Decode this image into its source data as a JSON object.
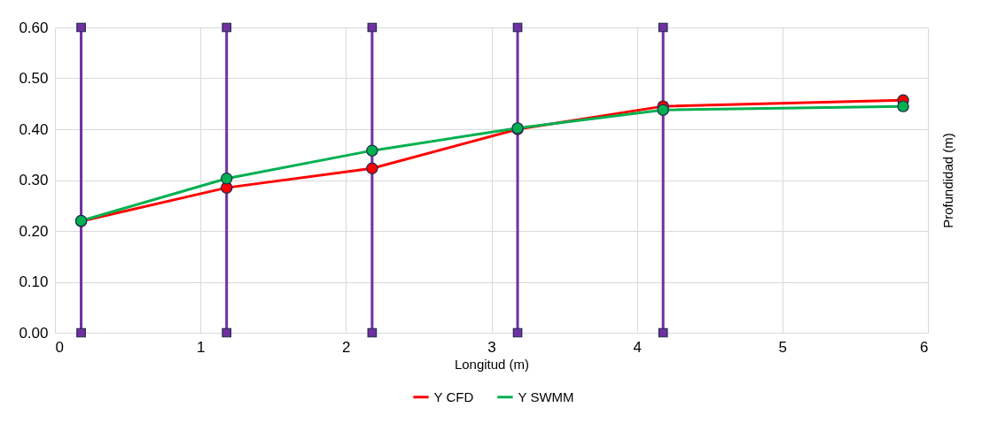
{
  "chart_data": {
    "type": "line",
    "xlabel": "Longitud (m)",
    "ylabel": "Profundidad (m)",
    "xlim": [
      0,
      6
    ],
    "xticks": [
      0,
      1,
      2,
      3,
      4,
      5,
      6
    ],
    "ylim": [
      0,
      0.6
    ],
    "yticks": [
      {
        "value": 0,
        "label": "0.00"
      },
      {
        "value": 0.1,
        "label": "0.10"
      },
      {
        "value": 0.2,
        "label": "0.20"
      },
      {
        "value": 0.3,
        "label": "0.30"
      },
      {
        "value": 0.4,
        "label": "0.40"
      },
      {
        "value": 0.5,
        "label": "0.50"
      },
      {
        "value": 0.6,
        "label": "0.60"
      }
    ],
    "grid": true,
    "legend": "bottom",
    "series": [
      {
        "color": "#7030a0",
        "marker": "square",
        "x": [
          0.18,
          0.18,
          null,
          1.18,
          1.18,
          null,
          2.18,
          2.18,
          null,
          3.18,
          3.18,
          null,
          4.18,
          4.18
        ],
        "values": [
          0,
          0.6,
          null,
          0,
          0.6,
          null,
          0,
          0.6,
          null,
          0,
          0.6,
          null,
          0,
          0.6
        ]
      },
      {
        "name": "Y CFD",
        "color": "#ff0000",
        "marker": "circle",
        "x": [
          0.18,
          1.18,
          2.18,
          3.18,
          4.18,
          5.83
        ],
        "values": [
          0.219,
          0.285,
          0.323,
          0.4,
          0.445,
          0.457
        ]
      },
      {
        "name": "Y SWMM",
        "color": "#00b050",
        "marker": "circle",
        "x": [
          0.18,
          1.18,
          2.18,
          3.18,
          4.18,
          5.83
        ],
        "values": [
          0.22,
          0.303,
          0.358,
          0.402,
          0.438,
          0.445
        ]
      }
    ]
  }
}
